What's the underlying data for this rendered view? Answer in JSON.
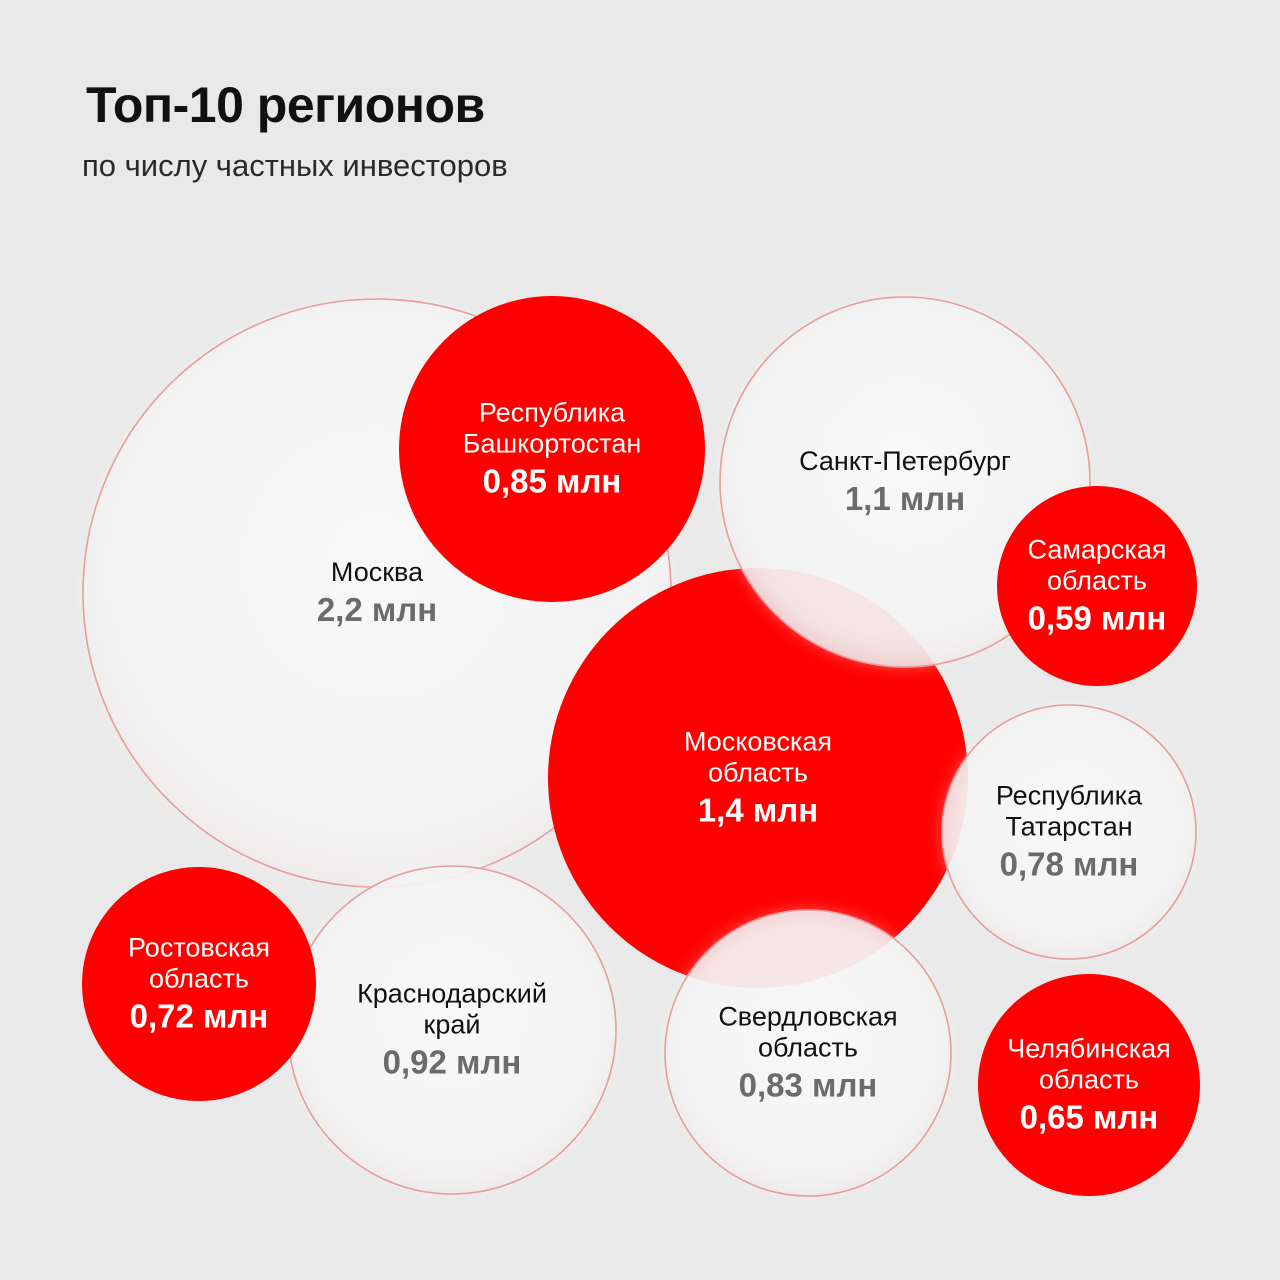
{
  "title": "Топ-10 регионов",
  "subtitle": "по числу частных инвесторов",
  "colors": {
    "background": "#eae9e9",
    "red": "#ff0000",
    "white_bubble": "#f6f6f6",
    "white_text_name": "#111111",
    "white_text_value": "#6b6b6b",
    "red_text": "#ffffff"
  },
  "chart_data": {
    "type": "bubble",
    "title": "Топ-10 регионов",
    "subtitle": "по числу частных инвесторов",
    "unit": "млн",
    "series": [
      {
        "name_lines": [
          "Москва"
        ],
        "value": 2.2,
        "value_label": "2,2 млн",
        "style": "white"
      },
      {
        "name_lines": [
          "Московская",
          "область"
        ],
        "value": 1.4,
        "value_label": "1,4 млн",
        "style": "red"
      },
      {
        "name_lines": [
          "Санкт-Петербург"
        ],
        "value": 1.1,
        "value_label": "1,1 млн",
        "style": "white"
      },
      {
        "name_lines": [
          "Краснодарский",
          "край"
        ],
        "value": 0.92,
        "value_label": "0,92 млн",
        "style": "white"
      },
      {
        "name_lines": [
          "Республика",
          "Башкортостан"
        ],
        "value": 0.85,
        "value_label": "0,85 млн",
        "style": "red"
      },
      {
        "name_lines": [
          "Свердловская",
          "область"
        ],
        "value": 0.83,
        "value_label": "0,83 млн",
        "style": "white"
      },
      {
        "name_lines": [
          "Республика",
          "Татарстан"
        ],
        "value": 0.78,
        "value_label": "0,78 млн",
        "style": "white"
      },
      {
        "name_lines": [
          "Ростовская",
          "область"
        ],
        "value": 0.72,
        "value_label": "0,72 млн",
        "style": "red"
      },
      {
        "name_lines": [
          "Челябинская",
          "область"
        ],
        "value": 0.65,
        "value_label": "0,65 млн",
        "style": "red"
      },
      {
        "name_lines": [
          "Самарская",
          "область"
        ],
        "value": 0.59,
        "value_label": "0,59 млн",
        "style": "red"
      }
    ]
  }
}
